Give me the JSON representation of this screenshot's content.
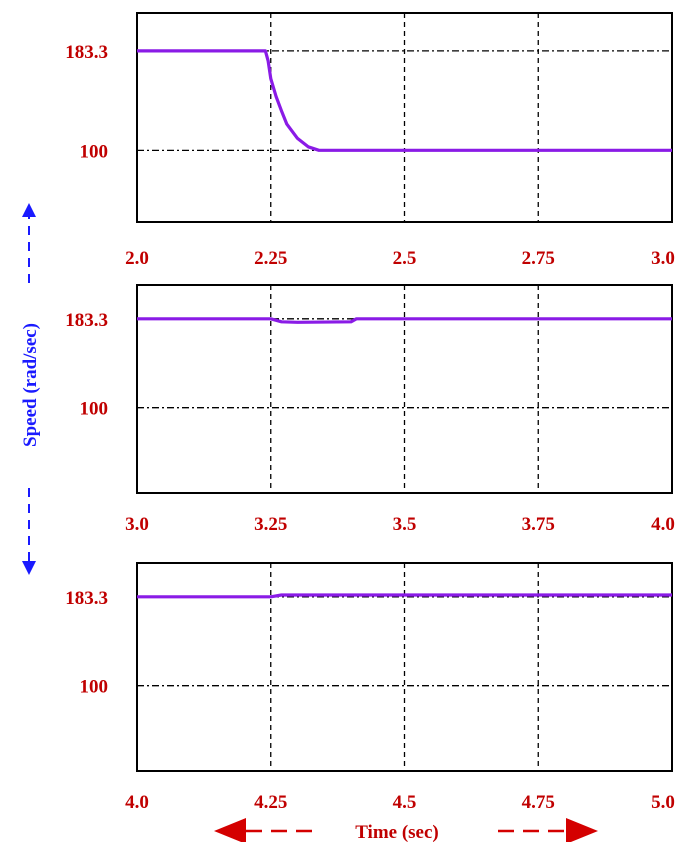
{
  "colors": {
    "series": "#8a1be6",
    "tick_text": "#c00000",
    "ylabel_text": "#1a1aff",
    "arrow_red": "#d40000",
    "arrow_blue": "#1a1aff"
  },
  "ylabel": "Speed (rad/sec)",
  "xlabel": "Time (sec)",
  "chart_data": [
    {
      "type": "line",
      "xlim": [
        2.0,
        3.0
      ],
      "ylim": [
        40,
        215
      ],
      "x_ticks": [
        "2.0",
        "2.25",
        "2.5",
        "2.75",
        "3.0"
      ],
      "x_tick_values": [
        2.0,
        2.25,
        2.5,
        2.75,
        3.0
      ],
      "y_ticks": [
        "183.3",
        "100"
      ],
      "y_tick_values": [
        183.3,
        100
      ],
      "grid": true,
      "series": [
        {
          "x": [
            2.0,
            2.24,
            2.245,
            2.25,
            2.26,
            2.27,
            2.28,
            2.3,
            2.32,
            2.34,
            3.0
          ],
          "y": [
            183.3,
            183.3,
            175,
            160,
            145,
            133,
            122,
            110,
            103,
            100,
            100
          ]
        }
      ]
    },
    {
      "type": "line",
      "xlim": [
        3.0,
        4.0
      ],
      "ylim": [
        20,
        215
      ],
      "x_ticks": [
        "3.0",
        "3.25",
        "3.5",
        "3.75",
        "4.0"
      ],
      "x_tick_values": [
        3.0,
        3.25,
        3.5,
        3.75,
        4.0
      ],
      "y_ticks": [
        "183.3",
        "100"
      ],
      "y_tick_values": [
        183.3,
        100
      ],
      "grid": true,
      "series": [
        {
          "x": [
            3.0,
            3.25,
            3.27,
            3.3,
            3.4,
            3.41,
            4.0
          ],
          "y": [
            183.3,
            183.3,
            180.5,
            180,
            180.5,
            183.3,
            183.3
          ]
        }
      ]
    },
    {
      "type": "line",
      "xlim": [
        4.0,
        5.0
      ],
      "ylim": [
        20,
        215
      ],
      "x_ticks": [
        "4.0",
        "4.25",
        "4.5",
        "4.75",
        "5.0"
      ],
      "x_tick_values": [
        4.0,
        4.25,
        4.5,
        4.75,
        5.0
      ],
      "y_ticks": [
        "183.3",
        "100"
      ],
      "y_tick_values": [
        183.3,
        100
      ],
      "grid": true,
      "series": [
        {
          "x": [
            4.0,
            4.25,
            4.27,
            4.5,
            5.0
          ],
          "y": [
            183.3,
            183.3,
            185,
            185,
            185
          ]
        }
      ]
    }
  ]
}
